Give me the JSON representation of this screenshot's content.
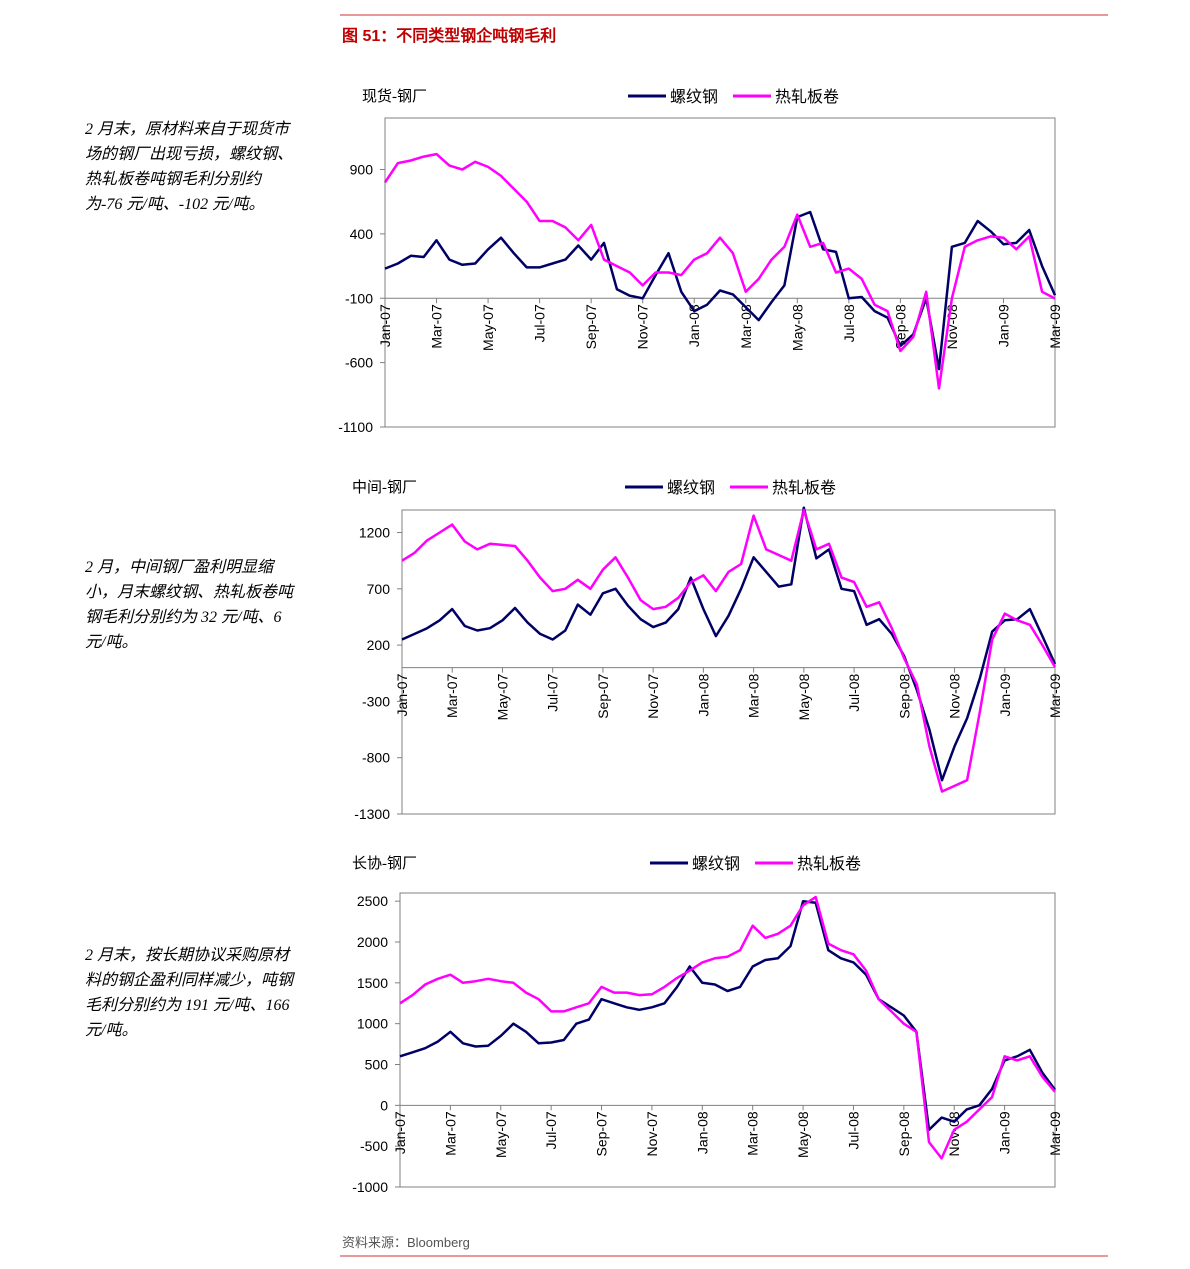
{
  "header": {
    "title": "图 51：不同类型钢企吨钢毛利"
  },
  "notes": [
    "2 月末，原材料来自于现货市场的钢厂出现亏损，螺纹钢、热轧板卷吨钢毛利分别约为-76 元/吨、-102 元/吨。",
    "2 月，中间钢厂盈利明显缩小，月末螺纹钢、热轧板卷吨钢毛利分别约为 32 元/吨、6 元/吨。",
    "2 月末，按长期协议采购原材料的钢企盈利同样减少，吨钢毛利分别约为 191 元/吨、166 元/吨。"
  ],
  "source": "资料来源：Bloomberg",
  "chart_data": [
    {
      "type": "line",
      "title": "现货-钢厂",
      "legend": "top",
      "xaxis_crosses": -100,
      "categories": [
        "Jan-07",
        null,
        null,
        null,
        "Mar-07",
        null,
        null,
        null,
        "May-07",
        null,
        null,
        null,
        "Jul-07",
        null,
        null,
        null,
        "Sep-07",
        null,
        null,
        null,
        "Nov-07",
        null,
        null,
        null,
        "Jan-08",
        null,
        null,
        null,
        "Mar-08",
        null,
        null,
        null,
        "May-08",
        null,
        null,
        null,
        "Jul-08",
        null,
        null,
        null,
        "Sep-08",
        null,
        null,
        null,
        "Nov-08",
        null,
        null,
        null,
        "Jan-09",
        null,
        null,
        null,
        "Mar-09"
      ],
      "series": [
        {
          "name": "螺纹钢",
          "color": "#000066",
          "values": [
            130,
            170,
            230,
            220,
            350,
            200,
            160,
            170,
            280,
            370,
            250,
            140,
            140,
            170,
            200,
            310,
            200,
            330,
            -30,
            -80,
            -100,
            80,
            250,
            -50,
            -200,
            -150,
            -40,
            -70,
            -170,
            -270,
            -130,
            0,
            530,
            570,
            280,
            260,
            -100,
            -90,
            -200,
            -250,
            -470,
            -380,
            -100,
            -650,
            300,
            330,
            500,
            420,
            320,
            330,
            430,
            150,
            -76
          ]
        },
        {
          "name": "热轧板卷",
          "color": "#ff00ff",
          "values": [
            800,
            950,
            970,
            1000,
            1020,
            930,
            900,
            960,
            920,
            850,
            750,
            650,
            500,
            500,
            450,
            350,
            470,
            200,
            150,
            100,
            0,
            100,
            100,
            80,
            200,
            250,
            370,
            250,
            -50,
            50,
            200,
            300,
            550,
            300,
            330,
            100,
            130,
            50,
            -150,
            -200,
            -510,
            -400,
            -50,
            -800,
            -100,
            300,
            350,
            380,
            370,
            280,
            380,
            -50,
            -102
          ]
        }
      ],
      "ylim": [
        -1100,
        1300
      ],
      "yticks": [
        -1100,
        -600,
        -100,
        400,
        900
      ]
    },
    {
      "type": "line",
      "title": "中间-钢厂",
      "legend": "top",
      "xaxis_crosses": 0,
      "categories": [
        "Jan-07",
        null,
        null,
        null,
        "Mar-07",
        null,
        null,
        null,
        "May-07",
        null,
        null,
        null,
        "Jul-07",
        null,
        null,
        null,
        "Sep-07",
        null,
        null,
        null,
        "Nov-07",
        null,
        null,
        null,
        "Jan-08",
        null,
        null,
        null,
        "Mar-08",
        null,
        null,
        null,
        "May-08",
        null,
        null,
        null,
        "Jul-08",
        null,
        null,
        null,
        "Sep-08",
        null,
        null,
        null,
        "Nov-08",
        null,
        null,
        null,
        "Jan-09",
        null,
        null,
        null,
        "Mar-09"
      ],
      "series": [
        {
          "name": "螺纹钢",
          "color": "#000066",
          "values": [
            250,
            300,
            350,
            420,
            520,
            370,
            330,
            350,
            420,
            530,
            400,
            300,
            250,
            330,
            560,
            470,
            660,
            700,
            550,
            430,
            360,
            400,
            520,
            800,
            520,
            280,
            460,
            700,
            980,
            850,
            720,
            740,
            1420,
            970,
            1050,
            700,
            680,
            380,
            430,
            300,
            100,
            -200,
            -550,
            -1000,
            -700,
            -450,
            -100,
            320,
            420,
            430,
            520,
            280,
            32
          ]
        },
        {
          "name": "热轧板卷",
          "color": "#ff00ff",
          "values": [
            950,
            1020,
            1130,
            1200,
            1270,
            1120,
            1050,
            1100,
            1090,
            1080,
            950,
            800,
            680,
            700,
            780,
            700,
            870,
            980,
            800,
            600,
            520,
            540,
            620,
            760,
            820,
            680,
            850,
            920,
            1350,
            1050,
            1000,
            950,
            1400,
            1050,
            1100,
            800,
            760,
            540,
            580,
            350,
            80,
            -150,
            -700,
            -1100,
            -1050,
            -1000,
            -400,
            250,
            480,
            420,
            380,
            200,
            6
          ]
        }
      ],
      "ylim": [
        -1300,
        1400
      ],
      "yticks": [
        -1300,
        -800,
        -300,
        200,
        700,
        1200
      ]
    },
    {
      "type": "line",
      "title": "长协-钢厂",
      "legend": "top",
      "xaxis_crosses": 0,
      "categories": [
        "Jan-07",
        null,
        null,
        null,
        "Mar-07",
        null,
        null,
        null,
        "May-07",
        null,
        null,
        null,
        "Jul-07",
        null,
        null,
        null,
        "Sep-07",
        null,
        null,
        null,
        "Nov-07",
        null,
        null,
        null,
        "Jan-08",
        null,
        null,
        null,
        "Mar-08",
        null,
        null,
        null,
        "May-08",
        null,
        null,
        null,
        "Jul-08",
        null,
        null,
        null,
        "Sep-08",
        null,
        null,
        null,
        "Nov-08",
        null,
        null,
        null,
        "Jan-09",
        null,
        null,
        null,
        "Mar-09"
      ],
      "series": [
        {
          "name": "螺纹钢",
          "color": "#000066",
          "values": [
            600,
            650,
            700,
            780,
            900,
            760,
            720,
            730,
            850,
            1000,
            900,
            760,
            770,
            800,
            1000,
            1050,
            1300,
            1250,
            1200,
            1170,
            1200,
            1250,
            1450,
            1700,
            1500,
            1480,
            1400,
            1450,
            1700,
            1780,
            1800,
            1950,
            2500,
            2480,
            1900,
            1800,
            1750,
            1600,
            1300,
            1200,
            1100,
            900,
            -300,
            -150,
            -200,
            -50,
            0,
            200,
            550,
            600,
            680,
            400,
            191
          ]
        },
        {
          "name": "热轧板卷",
          "color": "#ff00ff",
          "values": [
            1250,
            1350,
            1480,
            1550,
            1600,
            1500,
            1520,
            1550,
            1520,
            1500,
            1380,
            1300,
            1150,
            1150,
            1200,
            1250,
            1450,
            1380,
            1380,
            1350,
            1360,
            1450,
            1560,
            1650,
            1750,
            1800,
            1820,
            1900,
            2200,
            2050,
            2100,
            2200,
            2450,
            2550,
            1980,
            1900,
            1850,
            1650,
            1300,
            1150,
            1000,
            900,
            -450,
            -650,
            -300,
            -200,
            -50,
            100,
            600,
            550,
            600,
            350,
            166
          ]
        }
      ],
      "ylim": [
        -1000,
        2600
      ],
      "yticks": [
        -1000,
        -500,
        0,
        500,
        1000,
        1500,
        2000,
        2500
      ]
    }
  ]
}
